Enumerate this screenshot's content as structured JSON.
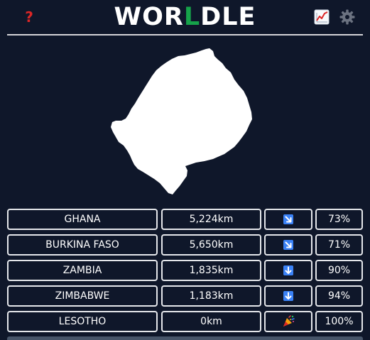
{
  "header": {
    "title_prefix": "WOR",
    "title_accent": "L",
    "title_suffix": "DLE",
    "help_glyph": "?",
    "help_icon": "question-mark-icon",
    "stats_icon": "chart-icon",
    "settings_icon": "gear-icon"
  },
  "colors": {
    "background": "#0f172a",
    "accent_green": "#16a34a",
    "help_red": "#dc2626",
    "arrow_blue": "#3b82f6",
    "cell_border": "#e5e7eb"
  },
  "guesses": [
    {
      "country": "GHANA",
      "distance": "5,224km",
      "direction": "arrow-down-right-icon",
      "proximity": "73%"
    },
    {
      "country": "BURKINA FASO",
      "distance": "5,650km",
      "direction": "arrow-down-right-icon",
      "proximity": "71%"
    },
    {
      "country": "ZAMBIA",
      "distance": "1,835km",
      "direction": "arrow-down-icon",
      "proximity": "90%"
    },
    {
      "country": "ZIMBABWE",
      "distance": "1,183km",
      "direction": "arrow-down-icon",
      "proximity": "94%"
    },
    {
      "country": "LESOTHO",
      "distance": "0km",
      "direction": "party-popper-icon",
      "proximity": "100%"
    }
  ]
}
